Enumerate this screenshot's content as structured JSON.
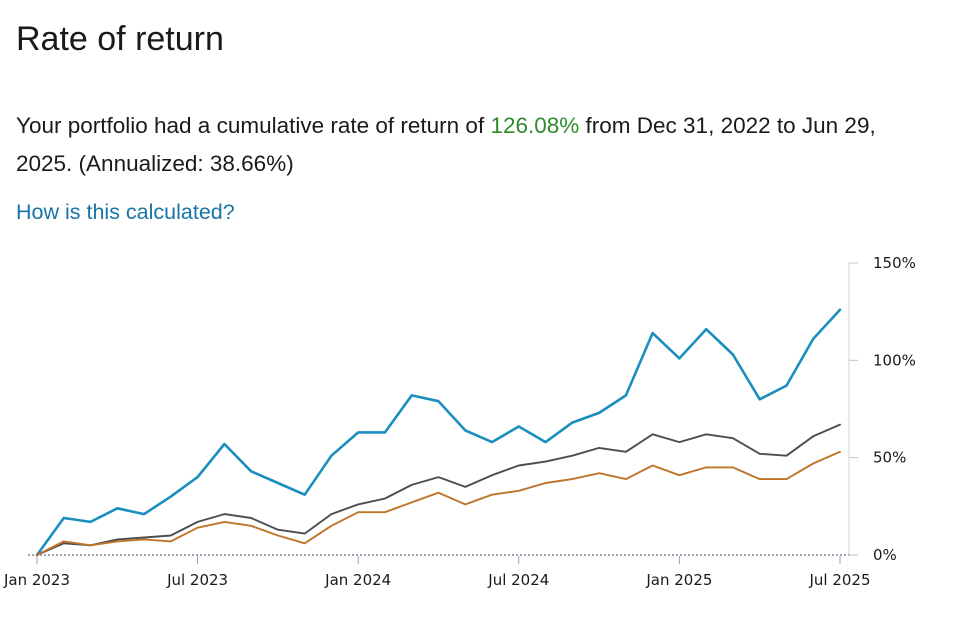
{
  "page": {
    "title": "Rate of return",
    "summary_prefix": "Your portfolio had a cumulative rate of return of ",
    "summary_rate": "126.08%",
    "summary_middle": " from Dec 31, 2022 to Jun 29, 2025. (Annualized: ",
    "summary_annualized": "38.66%",
    "summary_suffix": ")",
    "help_link": "How is this calculated?"
  },
  "colors": {
    "rate": "#2e8b2e",
    "link": "#1a74a4"
  },
  "chart_data": {
    "type": "line",
    "y_ticks": [
      "0%",
      "50%",
      "100%",
      "150%"
    ],
    "ylim": [
      0,
      150
    ],
    "x_ticks": [
      {
        "label": "Jan 2023",
        "month": 0
      },
      {
        "label": "Jul 2023",
        "month": 6
      },
      {
        "label": "Jan 2024",
        "month": 12
      },
      {
        "label": "Jul 2024",
        "month": 18
      },
      {
        "label": "Jan 2025",
        "month": 24
      },
      {
        "label": "Jul 2025",
        "month": 30
      }
    ],
    "x": [
      "2022-12-31",
      "2023-01-31",
      "2023-02-28",
      "2023-03-31",
      "2023-04-30",
      "2023-05-31",
      "2023-06-30",
      "2023-07-31",
      "2023-08-31",
      "2023-09-30",
      "2023-10-31",
      "2023-11-30",
      "2023-12-31",
      "2024-01-31",
      "2024-02-29",
      "2024-03-31",
      "2024-04-30",
      "2024-05-31",
      "2024-06-30",
      "2024-07-31",
      "2024-08-31",
      "2024-09-30",
      "2024-10-31",
      "2024-11-30",
      "2024-12-31",
      "2025-01-31",
      "2025-02-28",
      "2025-03-31",
      "2025-04-30",
      "2025-05-31",
      "2025-06-29"
    ],
    "series": [
      {
        "color": "#1a8fbf",
        "values": [
          0,
          19,
          17,
          24,
          21,
          30,
          40,
          57,
          43,
          37,
          31,
          51,
          63,
          63,
          82,
          79,
          64,
          58,
          66,
          58,
          68,
          73,
          82,
          114,
          101,
          116,
          103,
          80,
          87,
          111,
          126
        ]
      },
      {
        "color": "#4d4d4d",
        "values": [
          0,
          6,
          5,
          8,
          9,
          10,
          17,
          21,
          19,
          13,
          11,
          21,
          26,
          29,
          36,
          40,
          35,
          41,
          46,
          48,
          51,
          55,
          53,
          62,
          58,
          62,
          60,
          52,
          51,
          61,
          67
        ]
      },
      {
        "color": "#c0732a",
        "values": [
          0,
          7,
          5,
          7,
          8,
          7,
          14,
          17,
          15,
          10,
          6,
          15,
          22,
          22,
          27,
          32,
          26,
          31,
          33,
          37,
          39,
          42,
          39,
          46,
          41,
          45,
          45,
          39,
          39,
          47,
          53
        ]
      }
    ]
  }
}
